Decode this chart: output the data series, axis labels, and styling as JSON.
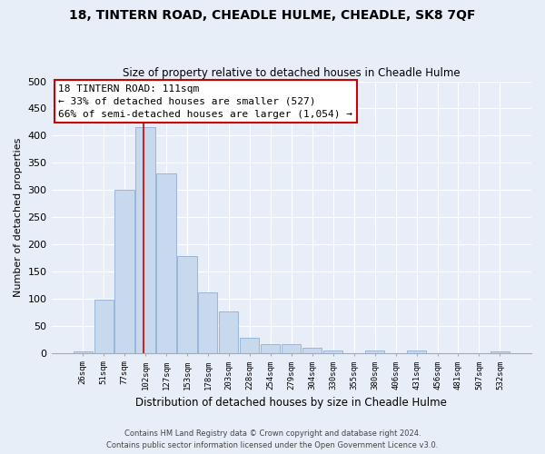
{
  "title1": "18, TINTERN ROAD, CHEADLE HULME, CHEADLE, SK8 7QF",
  "title2": "Size of property relative to detached houses in Cheadle Hulme",
  "xlabel": "Distribution of detached houses by size in Cheadle Hulme",
  "ylabel": "Number of detached properties",
  "bar_labels": [
    "26sqm",
    "51sqm",
    "77sqm",
    "102sqm",
    "127sqm",
    "153sqm",
    "178sqm",
    "203sqm",
    "228sqm",
    "254sqm",
    "279sqm",
    "304sqm",
    "330sqm",
    "355sqm",
    "380sqm",
    "406sqm",
    "431sqm",
    "456sqm",
    "481sqm",
    "507sqm",
    "532sqm"
  ],
  "bar_values": [
    3,
    99,
    301,
    415,
    330,
    178,
    112,
    77,
    28,
    17,
    17,
    9,
    5,
    0,
    5,
    0,
    5,
    0,
    0,
    0,
    3
  ],
  "bar_color": "#c8d9ee",
  "bar_edge_color": "#9ab5d8",
  "vline_color": "#cc0000",
  "vline_x": 3,
  "annotation_title": "18 TINTERN ROAD: 111sqm",
  "annotation_line1": "← 33% of detached houses are smaller (527)",
  "annotation_line2": "66% of semi-detached houses are larger (1,054) →",
  "ylim": [
    0,
    500
  ],
  "yticks": [
    0,
    50,
    100,
    150,
    200,
    250,
    300,
    350,
    400,
    450,
    500
  ],
  "footer1": "Contains HM Land Registry data © Crown copyright and database right 2024.",
  "footer2": "Contains public sector information licensed under the Open Government Licence v3.0.",
  "bg_color": "#e8eef8",
  "plot_bg_color": "#e8eef8",
  "grid_color": "#ffffff",
  "title1_fontsize": 10,
  "title2_fontsize": 8.5
}
